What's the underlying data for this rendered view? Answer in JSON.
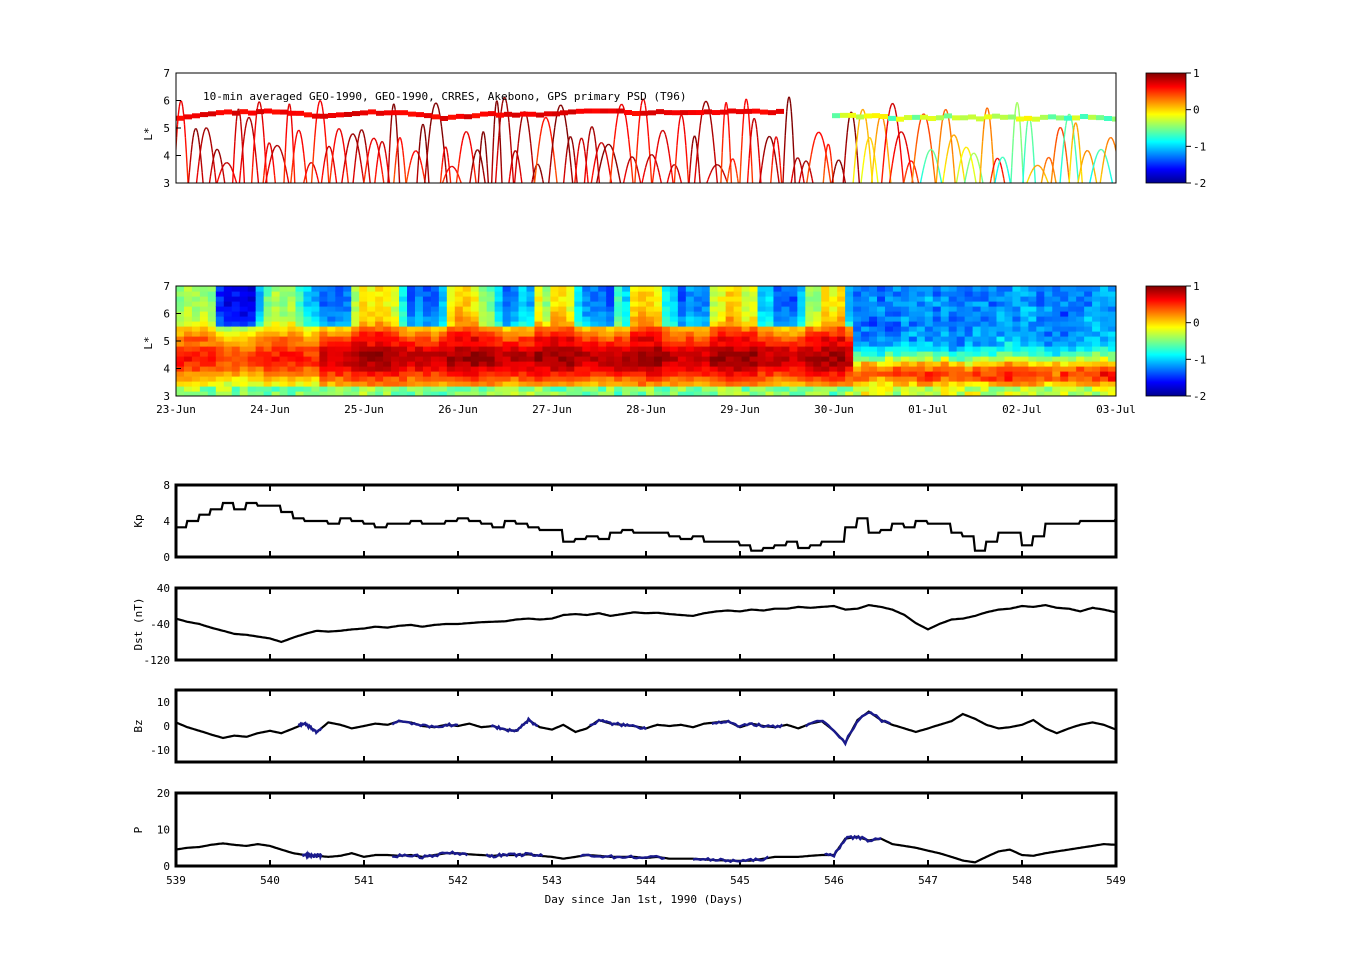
{
  "chart_data": [
    {
      "id": "psd-observed",
      "type": "scatter",
      "title": "10-min averaged GEO-1990, GEO-1990, CRRES, Akebono, GPS  primary PSD (T96)",
      "ylabel": "L*",
      "ylim": [
        3,
        7
      ],
      "yticks": [
        "3",
        "4",
        "5",
        "6",
        "7"
      ],
      "xlim": [
        539,
        549
      ],
      "colorbar": {
        "ticks": [
          "1",
          "0",
          "-1",
          "-2"
        ],
        "range": [
          -2,
          1
        ],
        "colormap": "jet"
      }
    },
    {
      "id": "psd-model",
      "type": "heatmap",
      "ylabel": "L*",
      "ylim": [
        3,
        7
      ],
      "yticks": [
        "3",
        "4",
        "5",
        "6",
        "7"
      ],
      "xlim": [
        539,
        549
      ],
      "xticklabels": [
        "23-Jun",
        "24-Jun",
        "25-Jun",
        "26-Jun",
        "27-Jun",
        "28-Jun",
        "29-Jun",
        "30-Jun",
        "01-Jul",
        "02-Jul",
        "03-Jul"
      ],
      "colorbar": {
        "ticks": [
          "1",
          "0",
          "-1",
          "-2"
        ],
        "range": [
          -2,
          1
        ],
        "colormap": "jet"
      }
    },
    {
      "id": "kp",
      "type": "line",
      "ylabel": "Kp",
      "ylim": [
        0,
        8
      ],
      "yticks": [
        "0",
        "4",
        "8"
      ],
      "xlim": [
        539,
        549
      ],
      "series": [
        {
          "x": [
            539.0,
            539.12,
            539.25,
            539.37,
            539.5,
            539.62,
            539.75,
            539.87,
            540.0,
            540.12,
            540.25,
            540.37,
            540.5,
            540.62,
            540.75,
            540.87,
            541.0,
            541.12,
            541.25,
            541.37,
            541.5,
            541.62,
            541.75,
            541.87,
            542.0,
            542.12,
            542.25,
            542.37,
            542.5,
            542.62,
            542.75,
            542.87,
            543.0,
            543.12,
            543.25,
            543.37,
            543.5,
            543.62,
            543.75,
            543.87,
            544.0,
            544.12,
            544.25,
            544.37,
            544.5,
            544.62,
            544.75,
            544.87,
            545.0,
            545.12,
            545.25,
            545.37,
            545.5,
            545.62,
            545.75,
            545.87,
            546.0,
            546.12,
            546.25,
            546.37,
            546.5,
            546.62,
            546.75,
            546.87,
            547.0,
            547.12,
            547.25,
            547.37,
            547.5,
            547.62,
            547.75,
            547.87,
            548.0,
            548.12,
            548.25,
            548.37,
            548.5,
            548.62,
            548.75,
            548.87,
            549.0
          ],
          "y": [
            3.3,
            4.0,
            4.7,
            5.3,
            6.0,
            5.3,
            6.0,
            5.7,
            5.7,
            5.0,
            4.3,
            4.0,
            4.0,
            3.7,
            4.3,
            4.0,
            3.7,
            3.3,
            3.7,
            3.7,
            4.0,
            3.7,
            3.7,
            4.0,
            4.3,
            4.0,
            3.7,
            3.3,
            4.0,
            3.7,
            3.3,
            3.0,
            3.0,
            1.7,
            2.0,
            2.3,
            2.0,
            2.7,
            3.0,
            2.7,
            2.7,
            2.7,
            2.3,
            2.0,
            2.3,
            1.7,
            1.7,
            1.7,
            1.3,
            0.7,
            1.0,
            1.3,
            1.7,
            1.0,
            1.3,
            1.7,
            1.7,
            3.3,
            4.3,
            2.7,
            3.0,
            3.7,
            3.3,
            4.0,
            3.7,
            3.7,
            2.7,
            2.3,
            0.7,
            1.7,
            2.7,
            2.7,
            1.3,
            2.3,
            3.7,
            3.7,
            3.7,
            4.0,
            4.0,
            4.0,
            4.3
          ]
        }
      ]
    },
    {
      "id": "dst",
      "type": "line",
      "ylabel": "Dst (nT)",
      "ylim": [
        -120,
        40
      ],
      "yticks": [
        "-120",
        "-40",
        "40"
      ],
      "xlim": [
        539,
        549
      ],
      "series": [
        {
          "x": [
            539.0,
            539.12,
            539.25,
            539.37,
            539.5,
            539.62,
            539.75,
            539.87,
            540.0,
            540.12,
            540.25,
            540.37,
            540.5,
            540.62,
            540.75,
            540.87,
            541.0,
            541.12,
            541.25,
            541.37,
            541.5,
            541.62,
            541.75,
            541.87,
            542.0,
            542.12,
            542.25,
            542.37,
            542.5,
            542.62,
            542.75,
            542.87,
            543.0,
            543.12,
            543.25,
            543.37,
            543.5,
            543.62,
            543.75,
            543.87,
            544.0,
            544.12,
            544.25,
            544.37,
            544.5,
            544.62,
            544.75,
            544.87,
            545.0,
            545.12,
            545.25,
            545.37,
            545.5,
            545.62,
            545.75,
            545.87,
            546.0,
            546.12,
            546.25,
            546.37,
            546.5,
            546.62,
            546.75,
            546.87,
            547.0,
            547.12,
            547.25,
            547.37,
            547.5,
            547.62,
            547.75,
            547.87,
            548.0,
            548.12,
            548.25,
            548.37,
            548.5,
            548.62,
            548.75,
            548.87,
            549.0
          ],
          "y": [
            -28,
            -35,
            -40,
            -48,
            -55,
            -62,
            -64,
            -68,
            -72,
            -80,
            -70,
            -62,
            -55,
            -57,
            -55,
            -52,
            -50,
            -46,
            -48,
            -44,
            -42,
            -46,
            -42,
            -40,
            -40,
            -38,
            -36,
            -35,
            -34,
            -30,
            -28,
            -30,
            -28,
            -20,
            -18,
            -20,
            -16,
            -22,
            -18,
            -14,
            -16,
            -15,
            -18,
            -20,
            -22,
            -16,
            -12,
            -10,
            -12,
            -8,
            -10,
            -6,
            -6,
            -2,
            -4,
            -2,
            0,
            -8,
            -6,
            2,
            -2,
            -8,
            -20,
            -38,
            -52,
            -40,
            -30,
            -28,
            -22,
            -14,
            -8,
            -6,
            0,
            -2,
            2,
            -4,
            -6,
            -12,
            -4,
            -8,
            -14
          ]
        }
      ]
    },
    {
      "id": "bz",
      "type": "line",
      "ylabel": "Bz",
      "ylim": [
        -15,
        15
      ],
      "yticks": [
        "-10",
        "0",
        "10"
      ],
      "xlim": [
        539,
        549
      ],
      "series": [
        {
          "x": [
            539.0,
            539.12,
            539.25,
            539.37,
            539.5,
            539.62,
            539.75,
            539.87,
            540.0,
            540.12,
            540.25,
            540.37,
            540.5,
            540.62,
            540.75,
            540.87,
            541.0,
            541.12,
            541.25,
            541.37,
            541.5,
            541.62,
            541.75,
            541.87,
            542.0,
            542.12,
            542.25,
            542.37,
            542.5,
            542.62,
            542.75,
            542.87,
            543.0,
            543.12,
            543.25,
            543.37,
            543.5,
            543.62,
            543.75,
            543.87,
            544.0,
            544.12,
            544.25,
            544.37,
            544.5,
            544.62,
            544.75,
            544.87,
            545.0,
            545.12,
            545.25,
            545.37,
            545.5,
            545.62,
            545.75,
            545.87,
            546.0,
            546.12,
            546.25,
            546.37,
            546.5,
            546.62,
            546.75,
            546.87,
            547.0,
            547.12,
            547.25,
            547.37,
            547.5,
            547.62,
            547.75,
            547.87,
            548.0,
            548.12,
            548.25,
            548.37,
            548.5,
            548.62,
            548.75,
            548.87,
            549.0
          ],
          "y": [
            1.5,
            -0.5,
            -2.0,
            -3.5,
            -5.0,
            -4.0,
            -4.5,
            -3.0,
            -2.0,
            -3.0,
            -1.0,
            1.0,
            -2.5,
            1.5,
            0.5,
            -1.0,
            0.0,
            1.0,
            0.5,
            2.0,
            1.5,
            0.0,
            -0.5,
            0.5,
            0.0,
            1.0,
            -0.5,
            0.0,
            -1.5,
            -2.0,
            2.5,
            -0.5,
            -1.5,
            0.5,
            -2.5,
            -1.0,
            2.5,
            1.0,
            0.5,
            0.0,
            -1.0,
            0.5,
            0.0,
            0.5,
            -0.5,
            1.0,
            1.5,
            2.0,
            -0.5,
            1.0,
            0.0,
            -0.5,
            0.5,
            -1.0,
            1.0,
            2.0,
            -2.0,
            -7.0,
            2.5,
            6.0,
            2.5,
            0.5,
            -1.0,
            -2.5,
            -1.0,
            0.5,
            2.0,
            5.0,
            3.0,
            0.5,
            -1.0,
            -0.5,
            0.5,
            2.5,
            -1.0,
            -3.0,
            -1.0,
            0.5,
            1.5,
            0.5,
            -1.5
          ]
        }
      ]
    },
    {
      "id": "p",
      "type": "line",
      "ylabel": "P",
      "ylim": [
        0,
        20
      ],
      "yticks": [
        "0",
        "10",
        "20"
      ],
      "xlim": [
        539,
        549
      ],
      "xticks": [
        "539",
        "540",
        "541",
        "542",
        "543",
        "544",
        "545",
        "546",
        "547",
        "548",
        "549"
      ],
      "xlabel": "Day since Jan 1st, 1990 (Days)",
      "series": [
        {
          "x": [
            539.0,
            539.12,
            539.25,
            539.37,
            539.5,
            539.62,
            539.75,
            539.87,
            540.0,
            540.12,
            540.25,
            540.37,
            540.5,
            540.62,
            540.75,
            540.87,
            541.0,
            541.12,
            541.25,
            541.37,
            541.5,
            541.62,
            541.75,
            541.87,
            542.0,
            542.12,
            542.25,
            542.37,
            542.5,
            542.62,
            542.75,
            542.87,
            543.0,
            543.12,
            543.25,
            543.37,
            543.5,
            543.62,
            543.75,
            543.87,
            544.0,
            544.12,
            544.25,
            544.37,
            544.5,
            544.62,
            544.75,
            544.87,
            545.0,
            545.12,
            545.25,
            545.37,
            545.5,
            545.62,
            545.75,
            545.87,
            546.0,
            546.12,
            546.25,
            546.37,
            546.5,
            546.62,
            546.75,
            546.87,
            547.0,
            547.12,
            547.25,
            547.37,
            547.5,
            547.62,
            547.75,
            547.87,
            548.0,
            548.12,
            548.25,
            548.37,
            548.5,
            548.62,
            548.75,
            548.87,
            549.0
          ],
          "y": [
            4.5,
            5.0,
            5.2,
            5.8,
            6.2,
            5.8,
            5.5,
            6.0,
            5.5,
            4.5,
            3.5,
            3.0,
            2.8,
            2.5,
            2.8,
            3.5,
            2.5,
            3.0,
            3.0,
            2.8,
            3.0,
            2.5,
            3.0,
            3.5,
            3.5,
            3.2,
            3.0,
            2.8,
            3.0,
            3.0,
            3.2,
            2.8,
            2.5,
            2.0,
            2.5,
            3.0,
            2.8,
            2.5,
            2.5,
            2.5,
            2.2,
            2.5,
            2.0,
            2.0,
            2.0,
            1.8,
            1.6,
            1.5,
            1.4,
            1.5,
            2.0,
            2.5,
            2.5,
            2.5,
            2.8,
            3.0,
            3.0,
            7.5,
            8.0,
            7.0,
            7.5,
            6.0,
            5.5,
            5.0,
            4.2,
            3.5,
            2.5,
            1.5,
            1.0,
            2.5,
            4.0,
            4.5,
            3.0,
            2.8,
            3.5,
            4.0,
            4.5,
            5.0,
            5.5,
            6.0,
            5.8
          ]
        }
      ]
    }
  ]
}
